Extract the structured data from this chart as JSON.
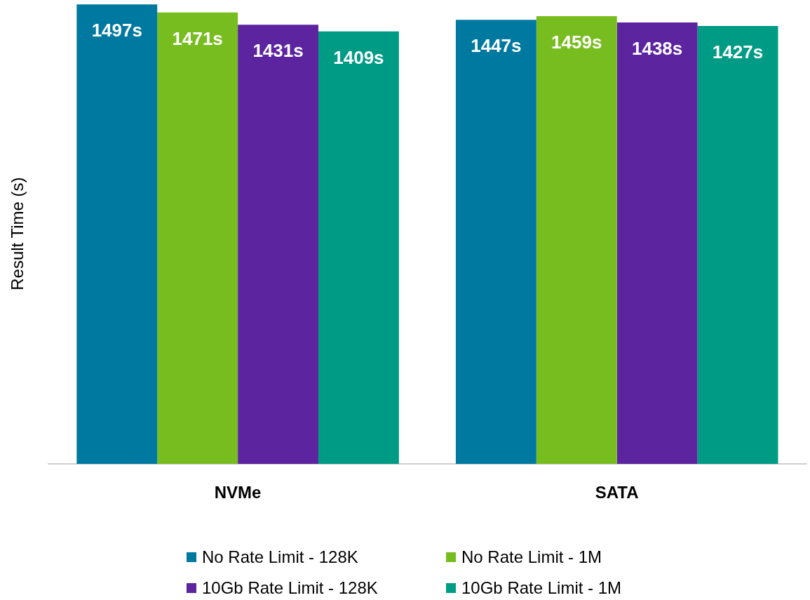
{
  "chart_data": {
    "type": "bar",
    "ylabel": "Result Time (s)",
    "categories": [
      "NVMe",
      "SATA"
    ],
    "series": [
      {
        "name": "No Rate Limit - 128K",
        "color": "#0079a0",
        "values": [
          1497,
          1447
        ],
        "value_labels": [
          "1497s",
          "1447s"
        ]
      },
      {
        "name": "No Rate Limit - 1M",
        "color": "#78bd20",
        "values": [
          1471,
          1459
        ],
        "value_labels": [
          "1471s",
          "1459s"
        ]
      },
      {
        "name": "10Gb Rate Limit - 128K",
        "color": "#5c249f",
        "values": [
          1431,
          1438
        ],
        "value_labels": [
          "1431s",
          "1438s"
        ]
      },
      {
        "name": "10Gb Rate Limit - 1M",
        "color": "#009b85",
        "values": [
          1409,
          1427
        ],
        "value_labels": [
          "1409s",
          "1427s"
        ]
      }
    ],
    "ylim": [
      0,
      1500
    ],
    "tick_labels": "x",
    "grid": false,
    "legend": "bottom"
  }
}
